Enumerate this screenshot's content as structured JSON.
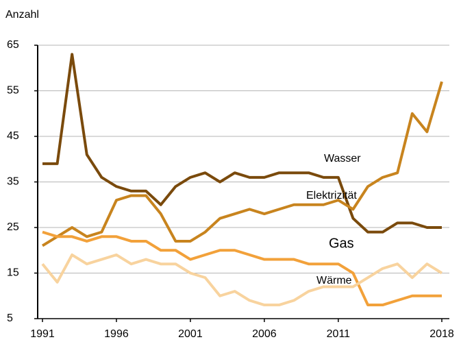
{
  "chart_data": {
    "type": "line",
    "y_label": "Anzahl",
    "x": [
      1991,
      1992,
      1993,
      1994,
      1995,
      1996,
      1997,
      1998,
      1999,
      2000,
      2001,
      2002,
      2003,
      2004,
      2005,
      2006,
      2007,
      2008,
      2009,
      2010,
      2011,
      2012,
      2013,
      2014,
      2015,
      2016,
      2017,
      2018
    ],
    "xlim": [
      1991,
      2018
    ],
    "xticks": [
      1991,
      1996,
      2001,
      2006,
      2011,
      2018
    ],
    "ylim": [
      5,
      65
    ],
    "yticks": [
      5,
      15,
      25,
      35,
      45,
      55,
      65
    ],
    "grid": true,
    "series": [
      {
        "name": "Wasser",
        "color": "#7a4a0c",
        "values": [
          39,
          39,
          63,
          41,
          36,
          34,
          33,
          33,
          30,
          34,
          36,
          37,
          35,
          37,
          36,
          36,
          37,
          37,
          37,
          36,
          36,
          27,
          24,
          24,
          26,
          26,
          25,
          25
        ]
      },
      {
        "name": "Elektrizität",
        "color": "#c8841e",
        "values": [
          21,
          23,
          25,
          23,
          24,
          31,
          32,
          32,
          28,
          22,
          22,
          24,
          27,
          28,
          29,
          28,
          29,
          30,
          30,
          30,
          31,
          29,
          34,
          36,
          37,
          50,
          46,
          57
        ]
      },
      {
        "name": "Gas",
        "color": "#f2a13a",
        "values": [
          24,
          23,
          23,
          22,
          23,
          23,
          22,
          22,
          20,
          20,
          18,
          19,
          20,
          20,
          19,
          18,
          18,
          18,
          17,
          17,
          17,
          15,
          8,
          8,
          9,
          10,
          10,
          10
        ]
      },
      {
        "name": "Wärme",
        "color": "#f8d39e",
        "values": [
          17,
          13,
          19,
          17,
          18,
          19,
          17,
          18,
          17,
          17,
          15,
          14,
          10,
          11,
          9,
          8,
          8,
          9,
          11,
          12,
          12,
          12,
          14,
          16,
          17,
          14,
          17,
          15
        ]
      }
    ]
  }
}
